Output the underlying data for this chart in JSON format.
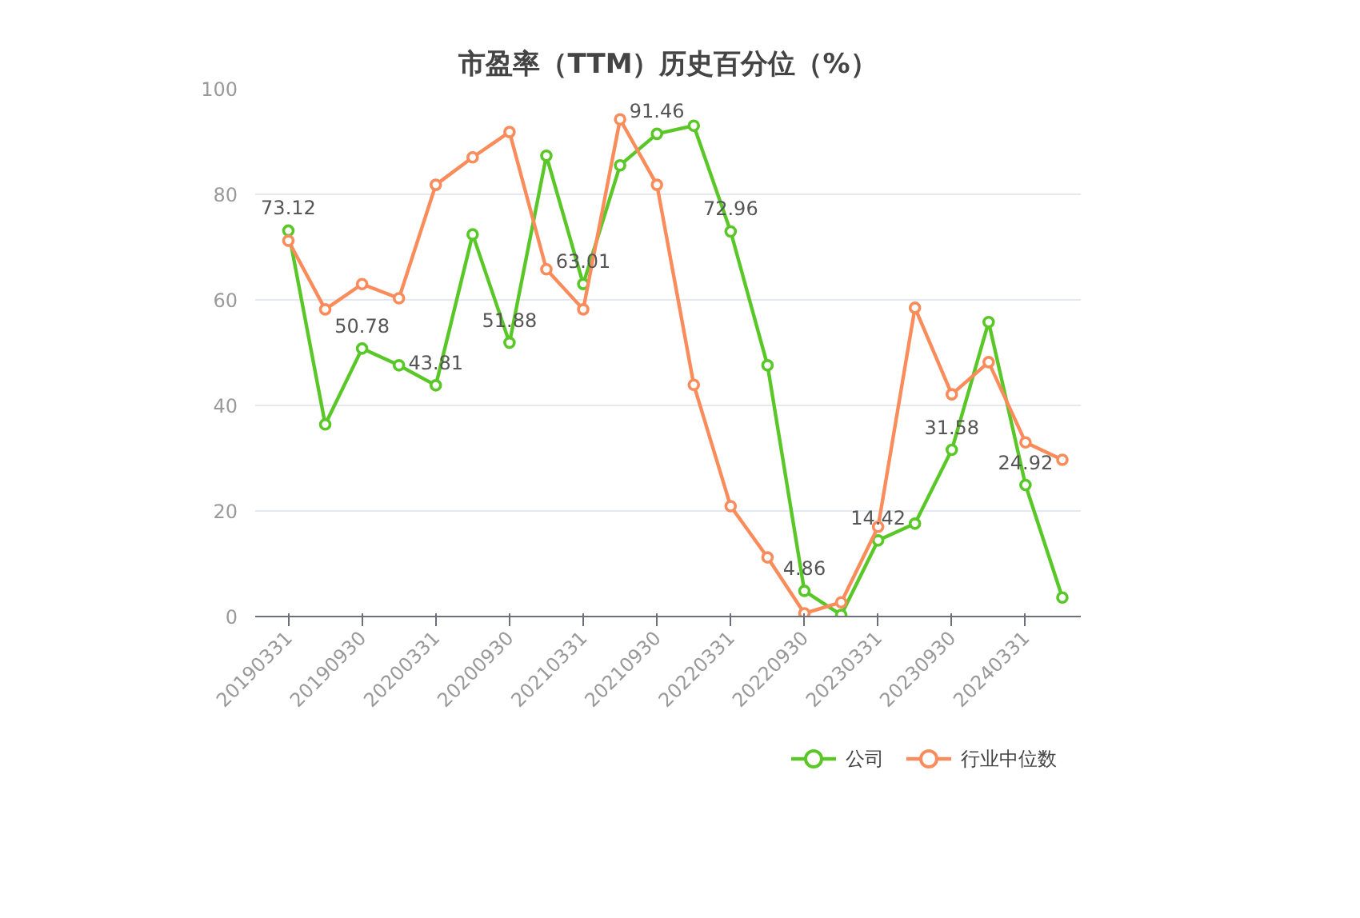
{
  "chart_data": {
    "type": "line",
    "title": "市盈率（TTM）历史百分位（%）",
    "categories": [
      "20190331",
      null,
      "20190930",
      null,
      "20200331",
      null,
      "20200930",
      null,
      "20210331",
      null,
      "20210930",
      null,
      "20220331",
      null,
      "20220930",
      null,
      "20230331",
      null,
      "20230930",
      null,
      "20240331",
      null
    ],
    "series": [
      {
        "name": "公司",
        "color": "#5ac728",
        "values": [
          73.12,
          36.4,
          50.78,
          47.6,
          43.81,
          72.4,
          51.88,
          87.3,
          63.01,
          85.5,
          91.46,
          93.0,
          72.96,
          47.6,
          4.86,
          0.3,
          14.42,
          17.6,
          31.58,
          55.8,
          24.92,
          3.6
        ],
        "value_labels": [
          "73.12",
          null,
          "50.78",
          null,
          "43.81",
          null,
          "51.88",
          null,
          "63.01",
          null,
          "91.46",
          null,
          "72.96",
          null,
          "4.86",
          null,
          "14.42",
          null,
          "31.58",
          null,
          "24.92",
          null
        ]
      },
      {
        "name": "行业中位数",
        "color": "#fa8c5c",
        "values": [
          71.2,
          58.2,
          63.0,
          60.3,
          81.8,
          87.0,
          91.8,
          65.8,
          58.2,
          94.2,
          81.8,
          43.9,
          20.9,
          11.2,
          0.6,
          2.7,
          17.0,
          58.5,
          42.1,
          48.2,
          33.0,
          29.7
        ]
      }
    ],
    "ylim": [
      0,
      100
    ],
    "yticks": [
      0,
      20,
      40,
      60,
      80,
      100
    ],
    "grid": "y",
    "legend": "bottom",
    "marker": "circle",
    "line_style": "solid"
  }
}
